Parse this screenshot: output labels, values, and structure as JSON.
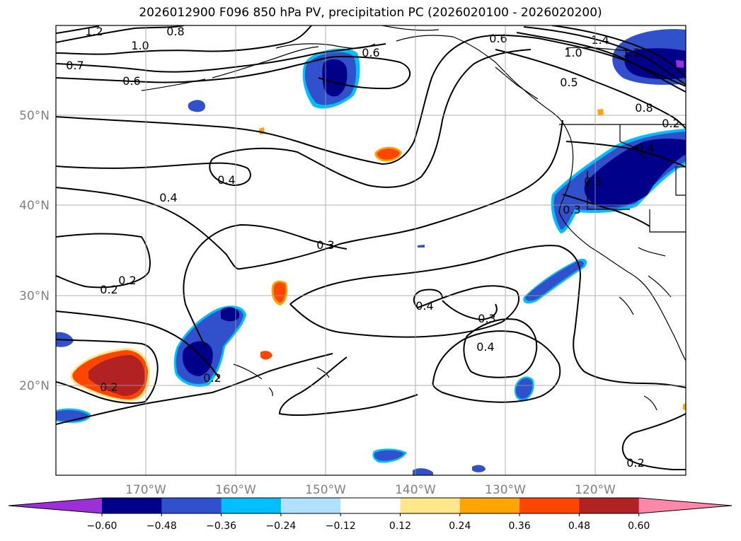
{
  "title": "2026012900 F096 850 hPa PV, precipitation PC (2026020100 - 2026020200)",
  "map": {
    "lon_range": [
      -180,
      -110
    ],
    "lat_range": [
      10,
      60
    ],
    "grid": true,
    "lon_ticks": [
      "170°W",
      "160°W",
      "150°W",
      "140°W",
      "130°W",
      "120°W"
    ],
    "lat_ticks": [
      "20°N",
      "30°N",
      "40°N",
      "50°N"
    ]
  },
  "contour_labels": [
    "1.2",
    "1.0",
    "0.8",
    "0.7",
    "0.6",
    "0.6",
    "0.6",
    "1.4",
    "1.2",
    "1.0",
    "0.5",
    "0.8",
    "0.4",
    "0.4",
    "0.3",
    "0.3",
    "0.2",
    "0.4",
    "0.3",
    "0.4",
    "0.2",
    "0.2",
    "0.2",
    "0.3",
    "0.4",
    "0.2",
    "0.2"
  ],
  "colorbar": {
    "colors": [
      "#9b30d9",
      "#00008b",
      "#3050cc",
      "#00bfff",
      "#b0e2ff",
      "#ffffff",
      "#ffe68a",
      "#ffa500",
      "#ff4500",
      "#b22222",
      "#ff88aa"
    ],
    "ticks": [
      "−0.60",
      "−0.48",
      "−0.36",
      "−0.24",
      "−0.12",
      "0.12",
      "0.24",
      "0.36",
      "0.48",
      "0.60"
    ],
    "extend": "both"
  }
}
